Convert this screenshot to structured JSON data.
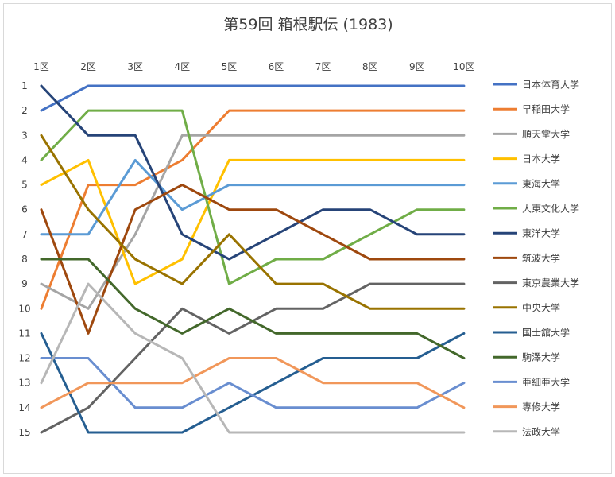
{
  "chart_data": {
    "type": "line",
    "title": "第59回 箱根駅伝 (1983)",
    "xlabel": "",
    "ylabel": "",
    "categories": [
      "1区",
      "2区",
      "3区",
      "4区",
      "5区",
      "6区",
      "7区",
      "8区",
      "9区",
      "10区"
    ],
    "y_ticks": [
      "1",
      "2",
      "3",
      "4",
      "5",
      "6",
      "7",
      "8",
      "9",
      "10",
      "11",
      "12",
      "13",
      "14",
      "15"
    ],
    "ylim": [
      1,
      15
    ],
    "y_inverted": true,
    "grid": false,
    "legend": "right",
    "series": [
      {
        "name": "日本体育大学",
        "color": "#4472C4",
        "values": [
          2,
          1,
          1,
          1,
          1,
          1,
          1,
          1,
          1,
          1
        ]
      },
      {
        "name": "早稲田大学",
        "color": "#ED7D31",
        "values": [
          10,
          5,
          5,
          4,
          2,
          2,
          2,
          2,
          2,
          2
        ]
      },
      {
        "name": "順天堂大学",
        "color": "#A5A5A5",
        "values": [
          9,
          10,
          7,
          3,
          3,
          3,
          3,
          3,
          3,
          3
        ]
      },
      {
        "name": "日本大学",
        "color": "#FFC000",
        "values": [
          5,
          4,
          9,
          8,
          4,
          4,
          4,
          4,
          4,
          4
        ]
      },
      {
        "name": "東海大学",
        "color": "#5B9BD5",
        "values": [
          7,
          7,
          4,
          6,
          5,
          5,
          5,
          5,
          5,
          5
        ]
      },
      {
        "name": "大東文化大学",
        "color": "#70AD47",
        "values": [
          4,
          2,
          2,
          2,
          9,
          8,
          8,
          7,
          6,
          6
        ]
      },
      {
        "name": "東洋大学",
        "color": "#264478",
        "values": [
          1,
          3,
          3,
          7,
          8,
          7,
          6,
          6,
          7,
          7
        ]
      },
      {
        "name": "筑波大学",
        "color": "#9E480E",
        "values": [
          6,
          11,
          6,
          5,
          6,
          6,
          7,
          8,
          8,
          8
        ]
      },
      {
        "name": "東京農業大学",
        "color": "#636363",
        "values": [
          15,
          14,
          12,
          10,
          11,
          10,
          10,
          9,
          9,
          9
        ]
      },
      {
        "name": "中央大学",
        "color": "#997300",
        "values": [
          3,
          6,
          8,
          9,
          7,
          9,
          9,
          10,
          10,
          10
        ]
      },
      {
        "name": "国士舘大学",
        "color": "#255E91",
        "values": [
          11,
          15,
          15,
          15,
          14,
          13,
          12,
          12,
          12,
          11
        ]
      },
      {
        "name": "駒澤大学",
        "color": "#43682B",
        "values": [
          8,
          8,
          10,
          11,
          10,
          11,
          11,
          11,
          11,
          12
        ]
      },
      {
        "name": "亜細亜大学",
        "color": "#698ED0",
        "values": [
          12,
          12,
          14,
          14,
          13,
          14,
          14,
          14,
          14,
          13
        ]
      },
      {
        "name": "専修大学",
        "color": "#F1975A",
        "values": [
          14,
          13,
          13,
          13,
          12,
          12,
          13,
          13,
          13,
          14
        ]
      },
      {
        "name": "法政大学",
        "color": "#B7B7B7",
        "values": [
          13,
          9,
          11,
          12,
          15,
          15,
          15,
          15,
          15,
          15
        ]
      }
    ]
  }
}
